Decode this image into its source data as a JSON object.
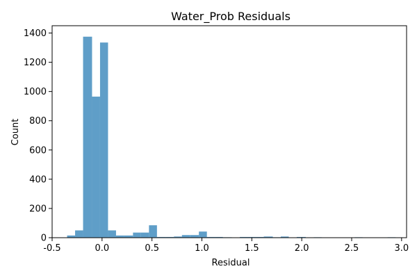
{
  "chart_data": {
    "type": "bar",
    "subtype": "histogram",
    "title": "Water_Prob Residuals",
    "xlabel": "Residual",
    "ylabel": "Count",
    "xlim": [
      -0.5,
      3.05
    ],
    "ylim": [
      0,
      1450
    ],
    "xticks": [
      "-0.5",
      "0.0",
      "0.5",
      "1.0",
      "1.5",
      "2.0",
      "2.5",
      "3.0"
    ],
    "yticks": [
      "0",
      "200",
      "400",
      "600",
      "800",
      "1000",
      "1200",
      "1400"
    ],
    "grid": false,
    "color": "#5f9ec8",
    "bins": [
      {
        "start": -0.35,
        "end": -0.27,
        "count": 15
      },
      {
        "start": -0.27,
        "end": -0.19,
        "count": 50
      },
      {
        "start": -0.19,
        "end": -0.1,
        "count": 1375
      },
      {
        "start": -0.1,
        "end": -0.02,
        "count": 965
      },
      {
        "start": -0.02,
        "end": 0.06,
        "count": 1335
      },
      {
        "start": 0.06,
        "end": 0.14,
        "count": 50
      },
      {
        "start": 0.14,
        "end": 0.22,
        "count": 15
      },
      {
        "start": 0.22,
        "end": 0.31,
        "count": 15
      },
      {
        "start": 0.31,
        "end": 0.39,
        "count": 35
      },
      {
        "start": 0.39,
        "end": 0.47,
        "count": 35
      },
      {
        "start": 0.47,
        "end": 0.55,
        "count": 85
      },
      {
        "start": 0.55,
        "end": 0.64,
        "count": 5
      },
      {
        "start": 0.64,
        "end": 0.72,
        "count": 5
      },
      {
        "start": 0.72,
        "end": 0.8,
        "count": 8
      },
      {
        "start": 0.8,
        "end": 0.88,
        "count": 18
      },
      {
        "start": 0.88,
        "end": 0.97,
        "count": 18
      },
      {
        "start": 0.97,
        "end": 1.05,
        "count": 42
      },
      {
        "start": 1.05,
        "end": 1.13,
        "count": 5
      },
      {
        "start": 1.13,
        "end": 1.21,
        "count": 5
      },
      {
        "start": 1.21,
        "end": 1.3,
        "count": 3
      },
      {
        "start": 1.3,
        "end": 1.38,
        "count": 2
      },
      {
        "start": 1.38,
        "end": 1.46,
        "count": 5
      },
      {
        "start": 1.46,
        "end": 1.54,
        "count": 5
      },
      {
        "start": 1.54,
        "end": 1.62,
        "count": 5
      },
      {
        "start": 1.62,
        "end": 1.71,
        "count": 8
      },
      {
        "start": 1.71,
        "end": 1.79,
        "count": 3
      },
      {
        "start": 1.79,
        "end": 1.87,
        "count": 8
      },
      {
        "start": 1.87,
        "end": 1.95,
        "count": 2
      },
      {
        "start": 1.95,
        "end": 2.04,
        "count": 5
      },
      {
        "start": 2.04,
        "end": 2.12,
        "count": 1
      },
      {
        "start": 2.12,
        "end": 2.2,
        "count": 3
      },
      {
        "start": 2.2,
        "end": 2.28,
        "count": 1
      },
      {
        "start": 2.53,
        "end": 2.61,
        "count": 3
      },
      {
        "start": 2.86,
        "end": 2.94,
        "count": 3
      }
    ]
  }
}
